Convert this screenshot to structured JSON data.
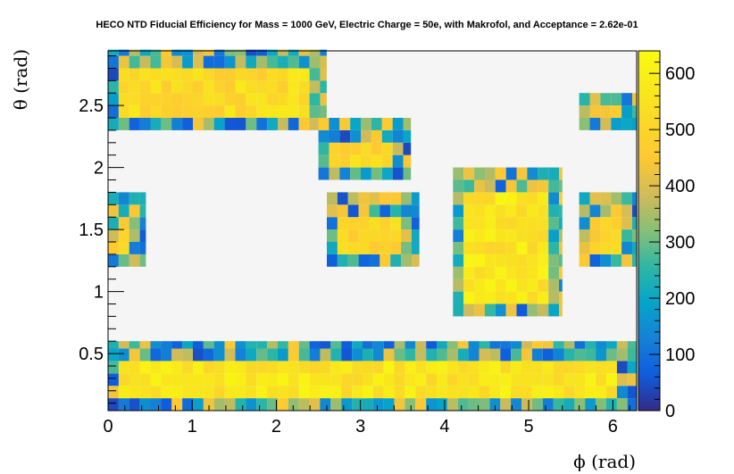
{
  "chart_data": {
    "type": "heatmap",
    "title": "HECO NTD Fiducial Efficiency for Mass = 1000 GeV, Electric Charge = 50e, with Makrofol, and Acceptance = 2.62e-01",
    "xlabel": "ϕ (rad)",
    "ylabel": "θ (rad)",
    "xlim": [
      0,
      6.283
    ],
    "ylim": [
      0.04,
      2.94
    ],
    "x_ticks": [
      "0",
      "1",
      "2",
      "3",
      "4",
      "5",
      "6"
    ],
    "y_ticks": [
      "0.5",
      "1",
      "1.5",
      "2",
      "2.5"
    ],
    "zlim": [
      0,
      640
    ],
    "z_ticks": [
      "0",
      "100",
      "200",
      "300",
      "400",
      "500",
      "600"
    ],
    "bin_width": 0.126,
    "bins_per_row": 50,
    "row_theta_step": 0.1,
    "palette": "kBird",
    "regions": [
      {
        "name": "top arc",
        "phi": [
          0.0,
          2.6
        ],
        "theta": [
          2.3,
          2.95
        ],
        "level": 520
      },
      {
        "name": "upper middle block",
        "phi": [
          2.5,
          3.6
        ],
        "theta": [
          1.9,
          2.4
        ],
        "level": 500
      },
      {
        "name": "middle block",
        "phi": [
          2.6,
          3.7
        ],
        "theta": [
          1.2,
          1.8
        ],
        "level": 500
      },
      {
        "name": "right tall block",
        "phi": [
          4.1,
          5.4
        ],
        "theta": [
          0.8,
          2.0
        ],
        "level": 560
      },
      {
        "name": "left edge block",
        "phi": [
          0.0,
          0.45
        ],
        "theta": [
          1.2,
          1.8
        ],
        "level": 500
      },
      {
        "name": "right edge block",
        "phi": [
          5.6,
          6.28
        ],
        "theta": [
          1.2,
          1.8
        ],
        "level": 480
      },
      {
        "name": "top right corner",
        "phi": [
          5.6,
          6.28
        ],
        "theta": [
          2.3,
          2.6
        ],
        "level": 440
      },
      {
        "name": "bottom band",
        "phi": [
          0.0,
          6.28
        ],
        "theta": [
          0.04,
          0.6
        ],
        "level": 560
      }
    ]
  }
}
